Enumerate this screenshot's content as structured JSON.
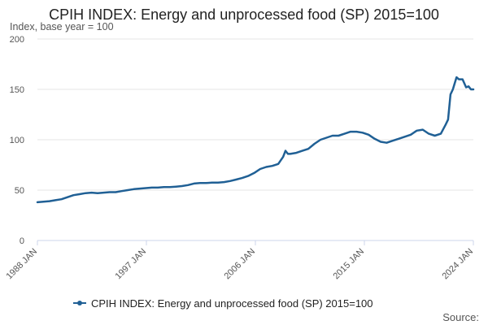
{
  "chart_data": {
    "type": "line",
    "title": "CPIH INDEX: Energy and unprocessed food (SP) 2015=100",
    "subtitle": "Index, base year = 100",
    "x_ticks": [
      "1988 JAN",
      "1997 JAN",
      "2006 JAN",
      "2015 JAN",
      "2024 JAN"
    ],
    "y_ticks": [
      0,
      50,
      100,
      150,
      200
    ],
    "ylim": [
      0,
      200
    ],
    "xlim": [
      1988.0,
      2024.2
    ],
    "grid": true,
    "legend_position": "bottom",
    "source_label": "Source:",
    "series": [
      {
        "name": "CPIH INDEX: Energy and unprocessed food (SP) 2015=100",
        "color": "#206095",
        "x": [
          1988.0,
          1988.5,
          1989.0,
          1989.5,
          1990.0,
          1990.5,
          1991.0,
          1991.5,
          1992.0,
          1992.5,
          1993.0,
          1993.5,
          1994.0,
          1994.5,
          1995.0,
          1995.5,
          1996.0,
          1996.5,
          1997.0,
          1997.5,
          1998.0,
          1998.5,
          1999.0,
          1999.5,
          2000.0,
          2000.5,
          2001.0,
          2001.5,
          2002.0,
          2002.5,
          2003.0,
          2003.5,
          2004.0,
          2004.5,
          2005.0,
          2005.5,
          2006.0,
          2006.5,
          2007.0,
          2007.5,
          2008.0,
          2008.4,
          2008.6,
          2008.8,
          2009.0,
          2009.5,
          2010.0,
          2010.5,
          2011.0,
          2011.5,
          2012.0,
          2012.5,
          2013.0,
          2013.5,
          2014.0,
          2014.5,
          2015.0,
          2015.5,
          2016.0,
          2016.5,
          2017.0,
          2017.5,
          2018.0,
          2018.5,
          2019.0,
          2019.5,
          2020.0,
          2020.5,
          2021.0,
          2021.5,
          2021.9,
          2022.1,
          2022.3,
          2022.5,
          2022.8,
          2023.0,
          2023.3,
          2023.6,
          2023.8,
          2024.0,
          2024.2
        ],
        "values": [
          38,
          38.5,
          39,
          40,
          41,
          43,
          45,
          46,
          47,
          47.5,
          47,
          47.5,
          48,
          48,
          49,
          50,
          51,
          51.5,
          52,
          52.5,
          52.5,
          53,
          53,
          53.5,
          54,
          55,
          56.5,
          57,
          57,
          57.5,
          57.5,
          58,
          59,
          60.5,
          62,
          64,
          67,
          71,
          73,
          74,
          76,
          83,
          89,
          86,
          86,
          87,
          89,
          91,
          96,
          100,
          102,
          104,
          104,
          106,
          108,
          108,
          107,
          105,
          101,
          98,
          97,
          99,
          101,
          103,
          105,
          109,
          110,
          106,
          104,
          106,
          115,
          120,
          145,
          150,
          162,
          160,
          160,
          152,
          153,
          150,
          150
        ]
      }
    ]
  }
}
